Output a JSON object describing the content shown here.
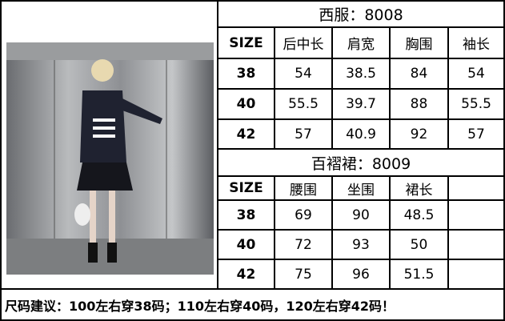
{
  "jacket": {
    "title": "西服：8008",
    "headers": [
      "SIZE",
      "后中长",
      "肩宽",
      "胸围",
      "袖长"
    ],
    "rows": [
      [
        "38",
        "54",
        "38.5",
        "84",
        "54"
      ],
      [
        "40",
        "55.5",
        "39.7",
        "88",
        "55.5"
      ],
      [
        "42",
        "57",
        "40.9",
        "92",
        "57"
      ]
    ]
  },
  "skirt": {
    "title": "百褶裙：8009",
    "headers": [
      "SIZE",
      "腰围",
      "坐围",
      "裙长",
      ""
    ],
    "rows": [
      [
        "38",
        "69",
        "90",
        "48.5",
        ""
      ],
      [
        "40",
        "72",
        "93",
        "50",
        ""
      ],
      [
        "42",
        "75",
        "96",
        "51.5",
        ""
      ]
    ]
  },
  "footer": "尺码建议：100左右穿38码；110左右穿40码，120左右穿42码！"
}
